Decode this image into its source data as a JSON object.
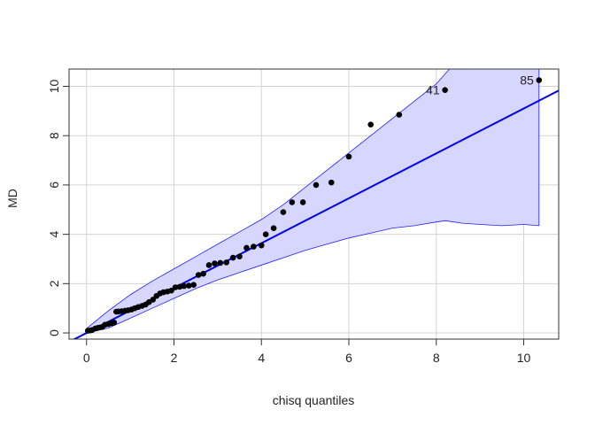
{
  "chart_data": {
    "type": "scatter",
    "title": "",
    "xlabel": "chisq quantiles",
    "ylabel": "MD",
    "xlim": [
      -0.4,
      10.8
    ],
    "ylim": [
      -0.25,
      10.7
    ],
    "x_ticks": [
      0,
      2,
      4,
      6,
      8,
      10
    ],
    "y_ticks": [
      0,
      2,
      4,
      6,
      8,
      10
    ],
    "grid": true,
    "colors": {
      "points": "#000000",
      "line": "#0000ee",
      "band_fill": "#d6d6ff",
      "band_edge": "#2020ff",
      "grid": "#d3d3d3"
    },
    "reference_line": {
      "intercept": 0.0,
      "slope": 0.91
    },
    "points": [
      {
        "x": 0.03,
        "y": 0.09
      },
      {
        "x": 0.08,
        "y": 0.1
      },
      {
        "x": 0.13,
        "y": 0.12
      },
      {
        "x": 0.2,
        "y": 0.18
      },
      {
        "x": 0.25,
        "y": 0.2
      },
      {
        "x": 0.3,
        "y": 0.22
      },
      {
        "x": 0.36,
        "y": 0.24
      },
      {
        "x": 0.42,
        "y": 0.33
      },
      {
        "x": 0.5,
        "y": 0.36
      },
      {
        "x": 0.58,
        "y": 0.4
      },
      {
        "x": 0.63,
        "y": 0.42
      },
      {
        "x": 0.68,
        "y": 0.86
      },
      {
        "x": 0.73,
        "y": 0.87
      },
      {
        "x": 0.8,
        "y": 0.88
      },
      {
        "x": 0.88,
        "y": 0.9
      },
      {
        "x": 0.95,
        "y": 0.92
      },
      {
        "x": 1.03,
        "y": 0.95
      },
      {
        "x": 1.1,
        "y": 1.0
      },
      {
        "x": 1.18,
        "y": 1.05
      },
      {
        "x": 1.27,
        "y": 1.1
      },
      {
        "x": 1.35,
        "y": 1.15
      },
      {
        "x": 1.43,
        "y": 1.25
      },
      {
        "x": 1.52,
        "y": 1.35
      },
      {
        "x": 1.6,
        "y": 1.5
      },
      {
        "x": 1.68,
        "y": 1.6
      },
      {
        "x": 1.76,
        "y": 1.65
      },
      {
        "x": 1.85,
        "y": 1.68
      },
      {
        "x": 1.94,
        "y": 1.72
      },
      {
        "x": 2.03,
        "y": 1.85
      },
      {
        "x": 2.13,
        "y": 1.87
      },
      {
        "x": 2.23,
        "y": 1.9
      },
      {
        "x": 2.34,
        "y": 1.92
      },
      {
        "x": 2.45,
        "y": 1.95
      },
      {
        "x": 2.56,
        "y": 2.35
      },
      {
        "x": 2.67,
        "y": 2.4
      },
      {
        "x": 2.8,
        "y": 2.75
      },
      {
        "x": 2.93,
        "y": 2.82
      },
      {
        "x": 3.06,
        "y": 2.84
      },
      {
        "x": 3.2,
        "y": 2.86
      },
      {
        "x": 3.35,
        "y": 3.05
      },
      {
        "x": 3.5,
        "y": 3.1
      },
      {
        "x": 3.66,
        "y": 3.45
      },
      {
        "x": 3.82,
        "y": 3.5
      },
      {
        "x": 4.0,
        "y": 3.55
      },
      {
        "x": 4.1,
        "y": 4.0
      },
      {
        "x": 4.28,
        "y": 4.25
      },
      {
        "x": 4.5,
        "y": 4.9
      },
      {
        "x": 4.7,
        "y": 5.3
      },
      {
        "x": 4.95,
        "y": 5.3
      },
      {
        "x": 5.25,
        "y": 6.0
      },
      {
        "x": 5.6,
        "y": 6.1
      },
      {
        "x": 6.0,
        "y": 7.15
      },
      {
        "x": 6.5,
        "y": 8.45
      },
      {
        "x": 7.15,
        "y": 8.85
      },
      {
        "x": 8.2,
        "y": 9.85,
        "label": "41"
      },
      {
        "x": 10.35,
        "y": 10.25,
        "label": "85"
      }
    ],
    "band_upper": [
      [
        0.0,
        0.18
      ],
      [
        0.5,
        0.9
      ],
      [
        1.0,
        1.55
      ],
      [
        1.5,
        2.1
      ],
      [
        2.0,
        2.6
      ],
      [
        2.5,
        3.1
      ],
      [
        3.0,
        3.6
      ],
      [
        3.5,
        4.1
      ],
      [
        4.0,
        4.6
      ],
      [
        4.5,
        5.2
      ],
      [
        5.0,
        5.9
      ],
      [
        5.5,
        6.6
      ],
      [
        6.0,
        7.3
      ],
      [
        6.5,
        8.0
      ],
      [
        7.0,
        8.7
      ],
      [
        7.5,
        9.4
      ],
      [
        8.0,
        10.1
      ],
      [
        8.3,
        10.7
      ]
    ],
    "band_lower": [
      [
        0.0,
        0.0
      ],
      [
        0.5,
        0.2
      ],
      [
        1.0,
        0.6
      ],
      [
        1.5,
        1.0
      ],
      [
        2.0,
        1.4
      ],
      [
        2.5,
        1.8
      ],
      [
        3.0,
        2.15
      ],
      [
        3.5,
        2.45
      ],
      [
        4.0,
        2.75
      ],
      [
        4.5,
        3.05
      ],
      [
        5.0,
        3.35
      ],
      [
        5.5,
        3.6
      ],
      [
        6.0,
        3.85
      ],
      [
        6.5,
        4.05
      ],
      [
        7.0,
        4.25
      ],
      [
        7.5,
        4.35
      ],
      [
        8.0,
        4.5
      ],
      [
        8.2,
        4.55
      ],
      [
        8.6,
        4.45
      ],
      [
        9.0,
        4.4
      ],
      [
        9.5,
        4.35
      ],
      [
        10.0,
        4.4
      ],
      [
        10.35,
        4.35
      ]
    ],
    "band_right_top": 10.7,
    "band_right_x": 10.35
  }
}
